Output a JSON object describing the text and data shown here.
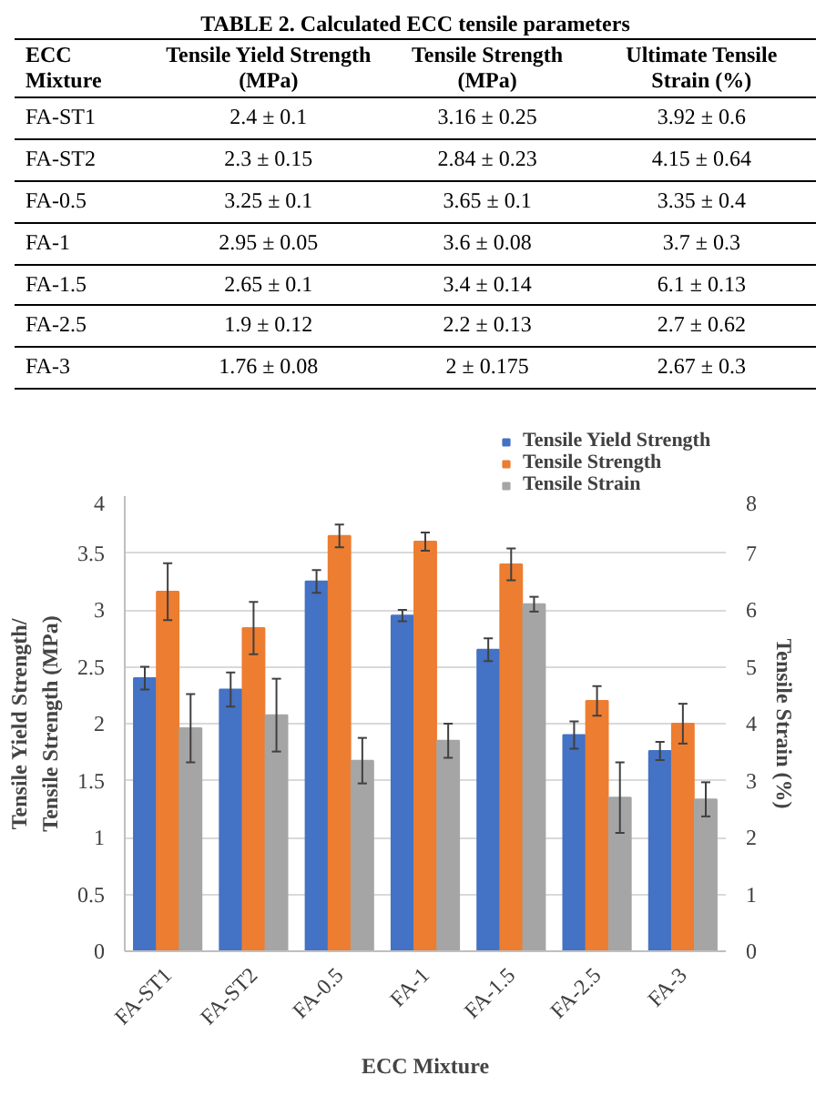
{
  "chart_data": [
    {
      "type": "other",
      "title": "TABLE 2. Calculated ECC tensile parameters",
      "annotations": [
        "ECC Mixture",
        "Tensile Yield Strength (MPa)",
        "Tensile Strength (MPa)",
        "Ultimate Tensile Strain (%)",
        "FA-ST1",
        "2.4 ± 0.1",
        "3.16 ± 0.25",
        "3.92 ± 0.6",
        "FA-ST2",
        "2.3 ± 0.15",
        "2.84 ± 0.23",
        "4.15 ± 0.64",
        "FA-0.5",
        "3.25 ± 0.1",
        "3.65 ± 0.1",
        "3.35 ± 0.4",
        "FA-1",
        "2.95 ± 0.05",
        "3.6 ± 0.08",
        "3.7 ± 0.3",
        "FA-1.5",
        "2.65 ± 0.1",
        "3.4 ± 0.14",
        "6.1 ± 0.13",
        "FA-2.5",
        "1.9 ± 0.12",
        "2.2 ± 0.13",
        "2.7 ± 0.62",
        "FA-3",
        "1.76 ± 0.08",
        "2 ± 0.175",
        "2.67 ± 0.3"
      ]
    },
    {
      "type": "bar",
      "categories": [
        "FA-ST1",
        "FA-ST2",
        "FA-0.5",
        "FA-1",
        "FA-1.5",
        "FA-2.5",
        "FA-3"
      ],
      "series": [
        {
          "name": "Tensile Yield Strength",
          "color": "#4472c4",
          "values": [
            2.4,
            2.3,
            3.25,
            2.95,
            2.65,
            1.9,
            1.76
          ],
          "errors": [
            0.1,
            0.15,
            0.1,
            0.05,
            0.1,
            0.12,
            0.08
          ]
        },
        {
          "name": "Tensile Strength",
          "color": "#ed7d31",
          "values": [
            3.16,
            2.84,
            3.65,
            3.6,
            3.4,
            2.2,
            2
          ],
          "errors": [
            0.25,
            0.23,
            0.1,
            0.08,
            0.14,
            0.13,
            0.175
          ]
        },
        {
          "name": "Tensile Strain",
          "color": "#a5a5a5",
          "axis": "y2",
          "values": [
            3.92,
            4.15,
            3.35,
            3.7,
            6.1,
            2.7,
            2.67
          ],
          "errors": [
            0.6,
            0.64,
            0.4,
            0.3,
            0.13,
            0.62,
            0.3
          ]
        }
      ],
      "xlabel": "ECC Mixture",
      "ylabel": "Tensile Yield Strength/ Tensile Strength (MPa)",
      "y2label": "Tensile Strain (%)",
      "ylim": [
        0,
        4
      ],
      "yticks": [
        0,
        0.5,
        1,
        1.5,
        2,
        2.5,
        3,
        3.5,
        4
      ],
      "y2lim": [
        0,
        8
      ],
      "y2ticks": [
        0,
        1,
        2,
        3,
        4,
        5,
        6,
        7,
        8
      ],
      "grid": "y",
      "legend": "top right"
    }
  ]
}
